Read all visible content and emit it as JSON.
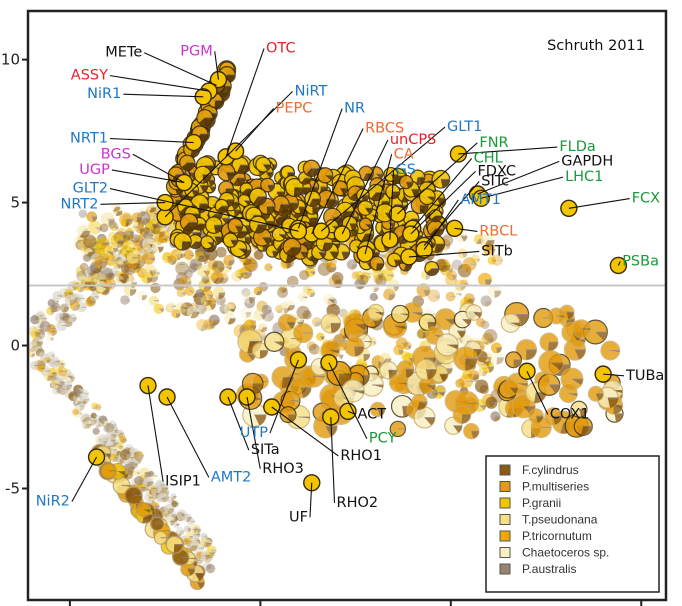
{
  "chart_data": {
    "type": "scatter",
    "title": "",
    "annotation": "Schruth 2011",
    "xlabel": "",
    "ylabel": "",
    "ylim": [
      -8.9,
      11.7
    ],
    "xlim": [
      -0.22,
      3.13
    ],
    "yticks": [
      10,
      5,
      0,
      -5
    ],
    "ytick_labels": [
      "10",
      "5",
      "0",
      "-5"
    ],
    "xticks": [
      0,
      1,
      2,
      3
    ],
    "xtick_labels": [
      "",
      "",
      "",
      ""
    ],
    "grid": false,
    "reference_line_y": 2.1,
    "marker": "pie (per-species expression share)",
    "legend": {
      "placement": "bottom-right",
      "entries": [
        {
          "name": "F.cylindrus",
          "color": "#8a5a12"
        },
        {
          "name": "P.multiseries",
          "color": "#e39a0c"
        },
        {
          "name": "P.granii",
          "color": "#f2c500"
        },
        {
          "name": "T.pseudonana",
          "color": "#f6df84"
        },
        {
          "name": "P.tricornutum",
          "color": "#f0a800"
        },
        {
          "name": "Chaetoceros sp.",
          "color": "#f8efc2"
        },
        {
          "name": "P.australis",
          "color": "#968270"
        }
      ]
    },
    "label_colors": {
      "black": "#111111",
      "red": "#e8202a",
      "magenta": "#cc33cc",
      "blue": "#1f78c4",
      "orange": "#f26a2e",
      "green": "#1a9a3a"
    },
    "highlighted_points": [
      {
        "label": "METe",
        "color": "black",
        "x": 0.77,
        "y": 9.1,
        "lx": 0.38,
        "ly": 10.1,
        "pie": "F.cylindrus"
      },
      {
        "label": "PGM",
        "color": "magenta",
        "x": 0.78,
        "y": 9.3,
        "lx": 0.75,
        "ly": 10.15
      },
      {
        "label": "OTC",
        "color": "red",
        "x": 0.82,
        "y": 6.6,
        "lx": 1.03,
        "ly": 10.25
      },
      {
        "label": "ASSY",
        "color": "red",
        "x": 0.73,
        "y": 8.9,
        "lx": 0.2,
        "ly": 9.3
      },
      {
        "label": "NiR1",
        "color": "blue",
        "x": 0.7,
        "y": 8.7,
        "lx": 0.27,
        "ly": 8.65
      },
      {
        "label": "NiRT",
        "color": "blue",
        "x": 0.5,
        "y": 4.5,
        "lx": 1.18,
        "ly": 8.75
      },
      {
        "label": "PEPC",
        "color": "orange",
        "x": 0.87,
        "y": 6.8,
        "lx": 1.08,
        "ly": 8.15
      },
      {
        "label": "NR",
        "color": "blue",
        "x": 1.2,
        "y": 4.1,
        "lx": 1.44,
        "ly": 8.15
      },
      {
        "label": "NRT1",
        "color": "blue",
        "x": 0.65,
        "y": 7.1,
        "lx": 0.2,
        "ly": 7.1
      },
      {
        "label": "RBCS",
        "color": "orange",
        "x": 1.27,
        "y": 3.9,
        "lx": 1.55,
        "ly": 7.45
      },
      {
        "label": "GLT1",
        "color": "blue",
        "x": 1.32,
        "y": 4.0,
        "lx": 1.98,
        "ly": 7.5
      },
      {
        "label": "unCPS",
        "color": "red",
        "x": 1.43,
        "y": 3.9,
        "lx": 1.68,
        "ly": 7.05
      },
      {
        "label": "FNR",
        "color": "green",
        "x": 1.72,
        "y": 4.6,
        "lx": 2.15,
        "ly": 6.95
      },
      {
        "label": "BGS",
        "color": "magenta",
        "x": 0.6,
        "y": 5.7,
        "lx": 0.32,
        "ly": 6.55
      },
      {
        "label": "CA",
        "color": "orange",
        "x": 1.55,
        "y": 3.2,
        "lx": 1.7,
        "ly": 6.55
      },
      {
        "label": "CHL",
        "color": "green",
        "x": 1.8,
        "y": 4.1,
        "lx": 2.12,
        "ly": 6.4
      },
      {
        "label": "UGP",
        "color": "magenta",
        "x": 0.6,
        "y": 5.7,
        "lx": 0.21,
        "ly": 6.0
      },
      {
        "label": "GS",
        "color": "blue",
        "x": 1.68,
        "y": 3.7,
        "lx": 1.71,
        "ly": 6.0
      },
      {
        "label": "FDXC",
        "color": "black",
        "x": 1.79,
        "y": 3.9,
        "lx": 2.14,
        "ly": 5.95
      },
      {
        "label": "FLDa",
        "color": "green",
        "x": 2.04,
        "y": 6.7,
        "lx": 2.57,
        "ly": 6.8
      },
      {
        "label": "GAPDH",
        "color": "black",
        "x": 2.14,
        "y": 5.3,
        "lx": 2.58,
        "ly": 6.3
      },
      {
        "label": "SITc",
        "color": "black",
        "x": 1.86,
        "y": 3.5,
        "lx": 2.16,
        "ly": 5.6
      },
      {
        "label": "LHC1",
        "color": "green",
        "x": 2.16,
        "y": 5.15,
        "lx": 2.6,
        "ly": 5.75
      },
      {
        "label": "GLT2",
        "color": "blue",
        "x": 1.2,
        "y": 4.0,
        "lx": 0.2,
        "ly": 5.35
      },
      {
        "label": "NRT2",
        "color": "blue",
        "x": 0.5,
        "y": 5.0,
        "lx": 0.15,
        "ly": 4.8
      },
      {
        "label": "FCX",
        "color": "green",
        "x": 2.62,
        "y": 4.8,
        "lx": 2.95,
        "ly": 5.0
      },
      {
        "label": "AMT1",
        "color": "blue",
        "x": 1.86,
        "y": 3.35,
        "lx": 2.05,
        "ly": 4.95
      },
      {
        "label": "RBCL",
        "color": "orange",
        "x": 2.02,
        "y": 4.1,
        "lx": 2.15,
        "ly": 3.85
      },
      {
        "label": "SITb",
        "color": "black",
        "x": 1.78,
        "y": 3.1,
        "lx": 2.16,
        "ly": 3.15
      },
      {
        "label": "PSBa",
        "color": "green",
        "x": 2.88,
        "y": 2.8,
        "lx": 2.9,
        "ly": 2.8
      },
      {
        "label": "TUBa",
        "color": "black",
        "x": 2.8,
        "y": -1.0,
        "lx": 2.92,
        "ly": -1.2
      },
      {
        "label": "COX1",
        "color": "black",
        "x": 2.4,
        "y": -0.9,
        "lx": 2.52,
        "ly": -2.55
      },
      {
        "label": "PCY",
        "color": "green",
        "x": 1.36,
        "y": -0.6,
        "lx": 1.57,
        "ly": -3.4
      },
      {
        "label": "ACT",
        "color": "black",
        "x": 1.46,
        "y": -2.3,
        "lx": 1.51,
        "ly": -2.55
      },
      {
        "label": "UTP",
        "color": "blue",
        "x": 1.2,
        "y": -0.5,
        "lx": 1.04,
        "ly": -3.2
      },
      {
        "label": "SITa",
        "color": "black",
        "x": 0.83,
        "y": -1.8,
        "lx": 0.95,
        "ly": -3.8
      },
      {
        "label": "RHO3",
        "color": "black",
        "x": 0.93,
        "y": -1.8,
        "lx": 1.01,
        "ly": -4.45
      },
      {
        "label": "RHO1",
        "color": "black",
        "x": 1.06,
        "y": -2.15,
        "lx": 1.42,
        "ly": -4.0
      },
      {
        "label": "RHO2",
        "color": "black",
        "x": 1.37,
        "y": -2.5,
        "lx": 1.4,
        "ly": -5.65
      },
      {
        "label": "UF",
        "color": "black",
        "x": 1.27,
        "y": -4.8,
        "lx": 1.25,
        "ly": -6.15
      },
      {
        "label": "AMT2",
        "color": "blue",
        "x": 0.51,
        "y": -1.8,
        "lx": 0.74,
        "ly": -4.75
      },
      {
        "label": "ISIP1",
        "color": "black",
        "x": 0.41,
        "y": -1.4,
        "lx": 0.5,
        "ly": -4.9
      },
      {
        "label": "NiR2",
        "color": "blue",
        "x": 0.14,
        "y": -3.9,
        "lx": 0.0,
        "ly": -5.6
      }
    ]
  }
}
